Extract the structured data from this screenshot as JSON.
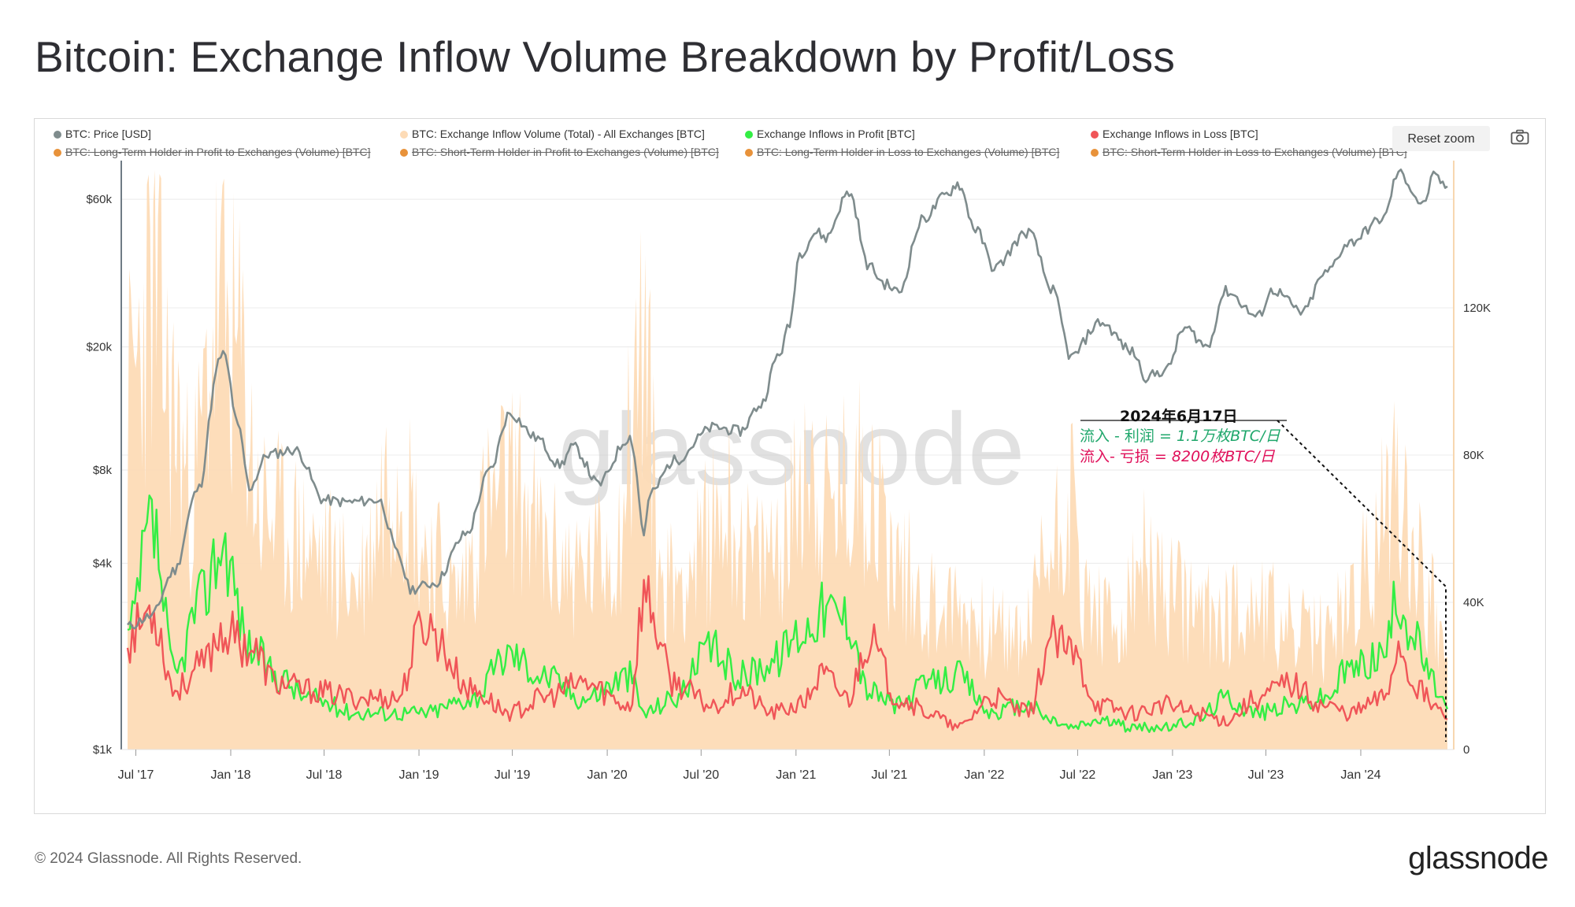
{
  "page_title": "Bitcoin: Exchange Inflow Volume Breakdown by Profit/Loss",
  "footer": {
    "copyright": "© 2024 Glassnode. All Rights Reserved.",
    "brand": "glassnode"
  },
  "toolbar": {
    "reset_zoom_label": "Reset zoom",
    "camera_icon": "camera-icon"
  },
  "watermark": "glassnode",
  "colors": {
    "price": "#7f8c8d",
    "volume": "#fddbb6",
    "profit": "#33ee44",
    "loss": "#f05558",
    "legend_off": "#e8923a",
    "annotation_profit": "#1fa76b",
    "annotation_loss": "#e0105a"
  },
  "legend": [
    {
      "label": "BTC: Price [USD]",
      "color": "#7f8c8d",
      "active": true
    },
    {
      "label": "BTC: Exchange Inflow Volume (Total) - All Exchanges [BTC]",
      "color": "#fddbb6",
      "active": true
    },
    {
      "label": "Exchange Inflows in Profit [BTC]",
      "color": "#33ee44",
      "active": true
    },
    {
      "label": "Exchange Inflows in Loss [BTC]",
      "color": "#f05558",
      "active": true
    },
    {
      "label": "BTC: Long-Term Holder in Profit to Exchanges (Volume) [BTC]",
      "color": "#e8923a",
      "active": false
    },
    {
      "label": "BTC: Short-Term Holder in Profit to Exchanges (Volume) [BTC]",
      "color": "#e8923a",
      "active": false
    },
    {
      "label": "BTC: Long-Term Holder in Loss to Exchanges (Volume) [BTC]",
      "color": "#e8923a",
      "active": false
    },
    {
      "label": "BTC: Short-Term Holder in Loss to Exchanges (Volume) [BTC]",
      "color": "#e8923a",
      "active": false
    }
  ],
  "annotation": {
    "date": "2024年6月17日",
    "profit_prefix": "流入 - 利润 = ",
    "profit_value": "1.1万枚BTC/日",
    "loss_prefix": "流入-  亏损 = ",
    "loss_value": "8200枚BTC/日"
  },
  "chart_data": {
    "type": "line",
    "title": "Bitcoin: Exchange Inflow Volume Breakdown by Profit/Loss",
    "x_ticks": [
      "Jul '17",
      "Jan '18",
      "Jul '18",
      "Jan '19",
      "Jul '19",
      "Jan '20",
      "Jul '20",
      "Jan '21",
      "Jul '21",
      "Jan '22",
      "Jul '22",
      "Jan '23",
      "Jul '23",
      "Jan '24"
    ],
    "x_range": [
      "2017-06-15",
      "2024-06-17"
    ],
    "y_left": {
      "scale": "log",
      "ticks": [
        "$1k",
        "$4k",
        "$8k",
        "$20k",
        "$60k"
      ],
      "tick_values": [
        1000,
        4000,
        8000,
        20000,
        60000
      ],
      "range": [
        1000,
        80000
      ]
    },
    "y_right": {
      "scale": "linear",
      "ticks": [
        "0",
        "40K",
        "80K",
        "120K"
      ],
      "tick_values": [
        0,
        40000,
        80000,
        120000
      ],
      "range": [
        0,
        160000
      ]
    },
    "series": [
      {
        "name": "BTC: Price [USD]",
        "axis": "left",
        "style": "line",
        "x": [
          "2017-06-15",
          "2017-08-01",
          "2017-09-15",
          "2017-11-01",
          "2017-12-17",
          "2018-01-15",
          "2018-02-06",
          "2018-03-15",
          "2018-05-05",
          "2018-06-30",
          "2018-08-15",
          "2018-10-15",
          "2018-11-20",
          "2018-12-15",
          "2019-02-01",
          "2019-04-05",
          "2019-05-20",
          "2019-06-26",
          "2019-08-15",
          "2019-10-01",
          "2019-10-27",
          "2019-12-15",
          "2020-02-14",
          "2020-03-12",
          "2020-03-25",
          "2020-05-10",
          "2020-07-27",
          "2020-09-15",
          "2020-10-25",
          "2020-11-30",
          "2020-12-20",
          "2021-01-08",
          "2021-02-10",
          "2021-02-28",
          "2021-04-14",
          "2021-05-19",
          "2021-06-22",
          "2021-07-20",
          "2021-09-06",
          "2021-10-20",
          "2021-11-10",
          "2021-12-15",
          "2022-01-20",
          "2022-03-28",
          "2022-05-10",
          "2022-06-18",
          "2022-08-14",
          "2022-10-15",
          "2022-11-10",
          "2022-12-20",
          "2023-01-25",
          "2023-03-10",
          "2023-04-14",
          "2023-06-15",
          "2023-07-15",
          "2023-09-11",
          "2023-10-24",
          "2023-12-10",
          "2024-02-15",
          "2024-03-14",
          "2024-05-01",
          "2024-05-21",
          "2024-06-17"
        ],
        "values": [
          2500,
          2700,
          3800,
          7000,
          19000,
          11000,
          7000,
          9000,
          9300,
          6400,
          6300,
          6400,
          4300,
          3300,
          3450,
          5000,
          8000,
          12200,
          10200,
          8300,
          9500,
          7200,
          10200,
          5000,
          6700,
          8600,
          11000,
          10700,
          13000,
          19000,
          23500,
          40000,
          47000,
          45000,
          63000,
          37000,
          32000,
          30000,
          52000,
          62000,
          67500,
          48000,
          36000,
          47000,
          31000,
          18500,
          24000,
          19300,
          16000,
          16800,
          23000,
          20000,
          30300,
          25000,
          30500,
          25800,
          34500,
          43500,
          52000,
          73000,
          57500,
          71000,
          66000
        ]
      },
      {
        "name": "BTC: Exchange Inflow Volume (Total) - All Exchanges [BTC]",
        "axis": "right",
        "style": "area",
        "x": [
          "2017-06-15",
          "2017-08-01",
          "2017-09-15",
          "2017-10-15",
          "2017-12-10",
          "2018-01-15",
          "2018-03-01",
          "2018-05-01",
          "2018-07-01",
          "2018-09-01",
          "2018-11-20",
          "2019-01-10",
          "2019-03-15",
          "2019-05-15",
          "2019-07-01",
          "2019-09-15",
          "2019-11-15",
          "2020-01-15",
          "2020-03-12",
          "2020-04-15",
          "2020-06-15",
          "2020-08-15",
          "2020-10-15",
          "2020-12-20",
          "2021-01-15",
          "2021-03-01",
          "2021-05-19",
          "2021-07-15",
          "2021-09-15",
          "2021-11-15",
          "2022-01-15",
          "2022-03-15",
          "2022-05-10",
          "2022-06-15",
          "2022-07-15",
          "2022-09-15",
          "2022-11-10",
          "2022-12-15",
          "2023-03-15",
          "2023-06-15",
          "2023-08-15",
          "2023-10-15",
          "2023-12-15",
          "2024-01-15",
          "2024-03-12",
          "2024-04-15",
          "2024-05-15",
          "2024-06-17"
        ],
        "values": [
          95000,
          122000,
          90000,
          70000,
          118000,
          105000,
          65000,
          58000,
          52000,
          45000,
          80000,
          55000,
          42000,
          65000,
          72000,
          52000,
          48000,
          55000,
          110000,
          45000,
          50000,
          65000,
          50000,
          60000,
          82000,
          65000,
          75000,
          50000,
          40000,
          38000,
          32000,
          30000,
          55000,
          70000,
          40000,
          32000,
          50000,
          42000,
          36000,
          40000,
          32000,
          30000,
          40000,
          48000,
          75000,
          55000,
          40000,
          25000
        ]
      },
      {
        "name": "Exchange Inflows in Profit [BTC]",
        "axis": "right",
        "style": "line",
        "x": [
          "2017-06-15",
          "2017-08-01",
          "2017-09-15",
          "2017-11-01",
          "2017-12-17",
          "2018-02-06",
          "2018-04-01",
          "2018-06-01",
          "2018-09-01",
          "2018-11-20",
          "2019-01-10",
          "2019-04-15",
          "2019-06-26",
          "2019-09-01",
          "2019-11-15",
          "2020-02-14",
          "2020-03-12",
          "2020-05-10",
          "2020-07-20",
          "2020-09-15",
          "2020-11-15",
          "2021-01-10",
          "2021-02-20",
          "2021-04-14",
          "2021-05-19",
          "2021-07-20",
          "2021-09-15",
          "2021-11-10",
          "2022-01-15",
          "2022-03-28",
          "2022-05-10",
          "2022-06-18",
          "2022-08-14",
          "2022-10-15",
          "2022-12-20",
          "2023-02-15",
          "2023-04-14",
          "2023-06-15",
          "2023-08-15",
          "2023-10-24",
          "2023-12-10",
          "2024-02-15",
          "2024-03-14",
          "2024-04-15",
          "2024-05-21",
          "2024-06-17"
        ],
        "values": [
          30000,
          60000,
          20000,
          40000,
          56000,
          28000,
          20000,
          14000,
          10000,
          10000,
          10000,
          14000,
          26000,
          20000,
          14000,
          20000,
          10000,
          14000,
          27000,
          20000,
          24000,
          32000,
          38000,
          36000,
          16000,
          12000,
          18000,
          20000,
          10000,
          12000,
          8000,
          6000,
          8000,
          6000,
          6000,
          8000,
          14000,
          10000,
          12000,
          14000,
          22000,
          26000,
          42000,
          30000,
          18000,
          11000
        ]
      },
      {
        "name": "Exchange Inflows in Loss [BTC]",
        "axis": "right",
        "style": "line",
        "x": [
          "2017-06-15",
          "2017-08-01",
          "2017-09-15",
          "2017-11-01",
          "2017-12-17",
          "2018-02-06",
          "2018-04-01",
          "2018-06-01",
          "2018-09-01",
          "2018-11-20",
          "2019-01-10",
          "2019-04-15",
          "2019-06-26",
          "2019-09-01",
          "2019-11-15",
          "2020-02-14",
          "2020-03-12",
          "2020-05-10",
          "2020-07-20",
          "2020-09-15",
          "2020-11-15",
          "2021-01-10",
          "2021-02-20",
          "2021-04-14",
          "2021-05-19",
          "2021-07-20",
          "2021-09-15",
          "2021-11-10",
          "2022-01-15",
          "2022-03-28",
          "2022-05-10",
          "2022-06-18",
          "2022-08-14",
          "2022-10-15",
          "2022-12-20",
          "2023-02-15",
          "2023-04-14",
          "2023-06-15",
          "2023-08-15",
          "2023-10-24",
          "2023-12-10",
          "2024-02-15",
          "2024-03-14",
          "2024-04-15",
          "2024-05-21",
          "2024-06-17"
        ],
        "values": [
          30000,
          38000,
          16000,
          22000,
          32000,
          28000,
          18000,
          16000,
          14000,
          14000,
          34000,
          16000,
          10000,
          14000,
          18000,
          12000,
          42000,
          18000,
          12000,
          16000,
          10000,
          12000,
          20000,
          14000,
          30000,
          14000,
          10000,
          6000,
          14000,
          10000,
          30000,
          26000,
          12000,
          10000,
          12000,
          10000,
          8000,
          14000,
          18000,
          12000,
          10000,
          14000,
          28000,
          18000,
          12000,
          8200
        ]
      }
    ]
  }
}
